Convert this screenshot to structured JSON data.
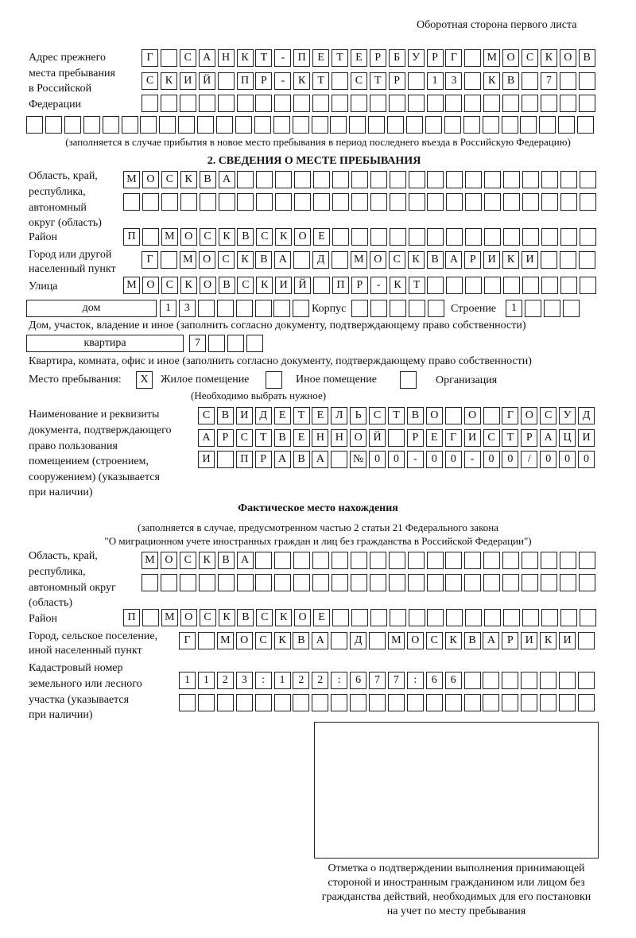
{
  "header": {
    "page_side": "Оборотная сторона первого листа"
  },
  "previous_address": {
    "label": [
      "Адрес прежнего",
      "места пребывания",
      "в Российской",
      "Федерации"
    ],
    "rows": [
      [
        "Г",
        "",
        "С",
        "А",
        "Н",
        "К",
        "Т",
        "-",
        "П",
        "Е",
        "Т",
        "Е",
        "Р",
        "Б",
        "У",
        "Р",
        "Г",
        "",
        "М",
        "О",
        "С",
        "К",
        "О",
        "В"
      ],
      [
        "С",
        "К",
        "И",
        "Й",
        "",
        "П",
        "Р",
        "-",
        "К",
        "Т",
        "",
        "С",
        "Т",
        "Р",
        "",
        "1",
        "3",
        "",
        "К",
        "В",
        "",
        "7",
        "",
        ""
      ],
      [
        "",
        "",
        "",
        "",
        "",
        "",
        "",
        "",
        "",
        "",
        "",
        "",
        "",
        "",
        "",
        "",
        "",
        "",
        "",
        "",
        "",
        "",
        "",
        ""
      ],
      [
        "",
        "",
        "",
        "",
        "",
        "",
        "",
        "",
        "",
        "",
        "",
        "",
        "",
        "",
        "",
        "",
        "",
        "",
        "",
        "",
        "",
        "",
        "",
        "",
        "",
        "",
        "",
        "",
        "",
        ""
      ]
    ],
    "note": "(заполняется в случае прибытия в новое место пребывания в период последнего въезда в Российскую Федерацию)"
  },
  "section2": {
    "title": "2. СВЕДЕНИЯ О МЕСТЕ ПРЕБЫВАНИЯ",
    "region_label": [
      "Область, край,",
      "республика,",
      "автономный",
      "округ (область)"
    ],
    "region_rows": [
      [
        "М",
        "О",
        "С",
        "К",
        "В",
        "А",
        "",
        "",
        "",
        "",
        "",
        "",
        "",
        "",
        "",
        "",
        "",
        "",
        "",
        "",
        "",
        "",
        "",
        "",
        ""
      ],
      [
        "",
        "",
        "",
        "",
        "",
        "",
        "",
        "",
        "",
        "",
        "",
        "",
        "",
        "",
        "",
        "",
        "",
        "",
        "",
        "",
        "",
        "",
        "",
        "",
        ""
      ]
    ],
    "district_label": "Район",
    "district": [
      "П",
      "",
      "М",
      "О",
      "С",
      "К",
      "В",
      "С",
      "К",
      "О",
      "Е",
      "",
      "",
      "",
      "",
      "",
      "",
      "",
      "",
      "",
      "",
      "",
      "",
      "",
      ""
    ],
    "city_label": [
      "Город или другой",
      "населенный пункт"
    ],
    "city": [
      "Г",
      "",
      "М",
      "О",
      "С",
      "К",
      "В",
      "А",
      "",
      "Д",
      "",
      "М",
      "О",
      "С",
      "К",
      "В",
      "А",
      "Р",
      "И",
      "К",
      "И",
      "",
      "",
      ""
    ],
    "street_label": "Улица",
    "street": [
      "М",
      "О",
      "С",
      "К",
      "О",
      "В",
      "С",
      "К",
      "И",
      "Й",
      "",
      "П",
      "Р",
      "-",
      "К",
      "Т",
      "",
      "",
      "",
      "",
      "",
      "",
      "",
      "",
      ""
    ],
    "house_type": "дом",
    "house": [
      "1",
      "3",
      "",
      "",
      "",
      "",
      "",
      ""
    ],
    "korpus_label": "Корпус",
    "korpus": [
      "",
      "",
      "",
      "",
      ""
    ],
    "building_label": "Строение",
    "building": [
      "1",
      "",
      "",
      ""
    ],
    "house_note": "Дом, участок, владение и иное (заполнить согласно документу, подтверждающему право собственности)",
    "apt_type": "квартира",
    "apt": [
      "7",
      "",
      "",
      ""
    ],
    "apt_note": "Квартира, комната, офис и иное (заполнить согласно документу, подтверждающему право собственности)",
    "stay_label": "Место пребывания:",
    "stay_options": [
      {
        "label": "Жилое помещение",
        "mark": "X"
      },
      {
        "label": "Иное помещение",
        "mark": ""
      },
      {
        "label": "Организация",
        "mark": ""
      }
    ],
    "stay_note": "(Необходимо выбрать нужное)",
    "doc_label": [
      "Наименование и реквизиты",
      "документа, подтверждающего",
      "право пользования",
      "помещением (строением,",
      "сооружением) (указывается",
      "при наличии)"
    ],
    "doc_rows": [
      [
        "С",
        "В",
        "И",
        "Д",
        "Е",
        "Т",
        "Е",
        "Л",
        "Ь",
        "С",
        "Т",
        "В",
        "О",
        "",
        "О",
        "",
        "Г",
        "О",
        "С",
        "У",
        "Д"
      ],
      [
        "А",
        "Р",
        "С",
        "Т",
        "В",
        "Е",
        "Н",
        "Н",
        "О",
        "Й",
        "",
        "Р",
        "Е",
        "Г",
        "И",
        "С",
        "Т",
        "Р",
        "А",
        "Ц",
        "И"
      ],
      [
        "И",
        "",
        "П",
        "Р",
        "А",
        "В",
        "А",
        "",
        "№",
        "0",
        "0",
        "-",
        "0",
        "0",
        "-",
        "0",
        "0",
        "/",
        "0",
        "0",
        "0"
      ]
    ]
  },
  "actual": {
    "title": "Фактическое место нахождения",
    "note": [
      "(заполняется в случае, предусмотренном частью 2 статьи 21 Федерального закона",
      "\"О миграционном учете иностранных граждан и лиц без гражданства в Российской Федерации\")"
    ],
    "region_label": [
      "Область, край,",
      "республика,",
      "автономный округ",
      "(область)"
    ],
    "region_rows": [
      [
        "М",
        "О",
        "С",
        "К",
        "В",
        "А",
        "",
        "",
        "",
        "",
        "",
        "",
        "",
        "",
        "",
        "",
        "",
        "",
        "",
        "",
        "",
        "",
        "",
        ""
      ],
      [
        "",
        "",
        "",
        "",
        "",
        "",
        "",
        "",
        "",
        "",
        "",
        "",
        "",
        "",
        "",
        "",
        "",
        "",
        "",
        "",
        "",
        "",
        "",
        ""
      ]
    ],
    "district_label": "Район",
    "district": [
      "П",
      "",
      "М",
      "О",
      "С",
      "К",
      "В",
      "С",
      "К",
      "О",
      "Е",
      "",
      "",
      "",
      "",
      "",
      "",
      "",
      "",
      "",
      "",
      "",
      "",
      "",
      ""
    ],
    "city_label": [
      "Город, сельское поселение,",
      "иной населенный пункт"
    ],
    "city": [
      "Г",
      "",
      "М",
      "О",
      "С",
      "К",
      "В",
      "А",
      "",
      "Д",
      "",
      "М",
      "О",
      "С",
      "К",
      "В",
      "А",
      "Р",
      "И",
      "К",
      "И",
      ""
    ],
    "cadastral_label": [
      "Кадастровый номер",
      "земельного или лесного",
      "участка (указывается",
      "при наличии)"
    ],
    "cadastral_rows": [
      [
        "1",
        "1",
        "2",
        "3",
        ":",
        "1",
        "2",
        "2",
        ":",
        "6",
        "7",
        "7",
        ":",
        "6",
        "6",
        "",
        "",
        "",
        "",
        "",
        "",
        ""
      ],
      [
        "",
        "",
        "",
        "",
        "",
        "",
        "",
        "",
        "",
        "",
        "",
        "",
        "",
        "",
        "",
        "",
        "",
        "",
        "",
        "",
        "",
        ""
      ]
    ]
  },
  "confirmation": {
    "caption": [
      "Отметка о подтверждении выполнения принимающей",
      "стороной и иностранным гражданином или лицом без",
      "гражданства действий, необходимых для его постановки",
      "на учет по месту пребывания"
    ]
  }
}
